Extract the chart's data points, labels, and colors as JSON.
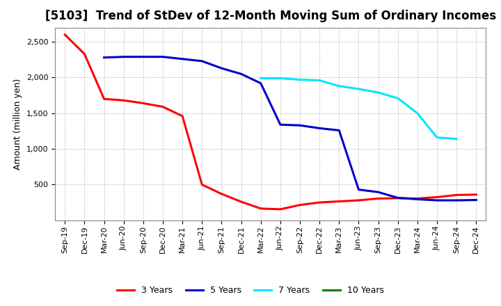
{
  "title": "[5103]  Trend of StDev of 12-Month Moving Sum of Ordinary Incomes",
  "ylabel": "Amount (million yen)",
  "background_color": "#ffffff",
  "plot_bg_color": "#ffffff",
  "grid_color": "#999999",
  "x_labels": [
    "Sep-19",
    "Dec-19",
    "Mar-20",
    "Jun-20",
    "Sep-20",
    "Dec-20",
    "Mar-21",
    "Jun-21",
    "Sep-21",
    "Dec-21",
    "Mar-22",
    "Jun-22",
    "Sep-22",
    "Dec-22",
    "Mar-23",
    "Jun-23",
    "Sep-23",
    "Dec-23",
    "Mar-24",
    "Jun-24",
    "Sep-24",
    "Dec-24"
  ],
  "series": [
    {
      "name": "3 Years",
      "color": "#ff0000",
      "data_x": [
        0,
        1,
        2,
        3,
        4,
        5,
        6,
        7,
        8,
        9,
        10,
        11,
        12,
        13,
        14,
        15,
        16,
        17,
        18,
        19,
        20,
        21
      ],
      "data_y": [
        2600,
        2330,
        1700,
        1680,
        1640,
        1590,
        1460,
        500,
        370,
        260,
        165,
        155,
        215,
        250,
        265,
        280,
        305,
        310,
        305,
        325,
        355,
        360
      ]
    },
    {
      "name": "5 Years",
      "color": "#0000cc",
      "data_x": [
        2,
        3,
        4,
        5,
        6,
        7,
        8,
        9,
        10,
        11,
        12,
        13,
        14,
        15,
        16,
        17,
        18,
        19,
        20,
        21
      ],
      "data_y": [
        2280,
        2290,
        2290,
        2290,
        2260,
        2230,
        2130,
        2050,
        1920,
        1340,
        1330,
        1290,
        1260,
        430,
        395,
        315,
        295,
        280,
        280,
        285
      ]
    },
    {
      "name": "7 Years",
      "color": "#00e5ff",
      "data_x": [
        10,
        11,
        12,
        13,
        14,
        15,
        16,
        17,
        18,
        19,
        20
      ],
      "data_y": [
        1990,
        1990,
        1970,
        1960,
        1880,
        1840,
        1790,
        1710,
        1500,
        1160,
        1140
      ]
    },
    {
      "name": "10 Years",
      "color": "#008000",
      "data_x": [],
      "data_y": []
    }
  ],
  "ylim": [
    0,
    2700
  ],
  "yticks": [
    500,
    1000,
    1500,
    2000,
    2500
  ],
  "title_fontsize": 12,
  "tick_fontsize": 8,
  "label_fontsize": 9,
  "linewidth": 2.2
}
